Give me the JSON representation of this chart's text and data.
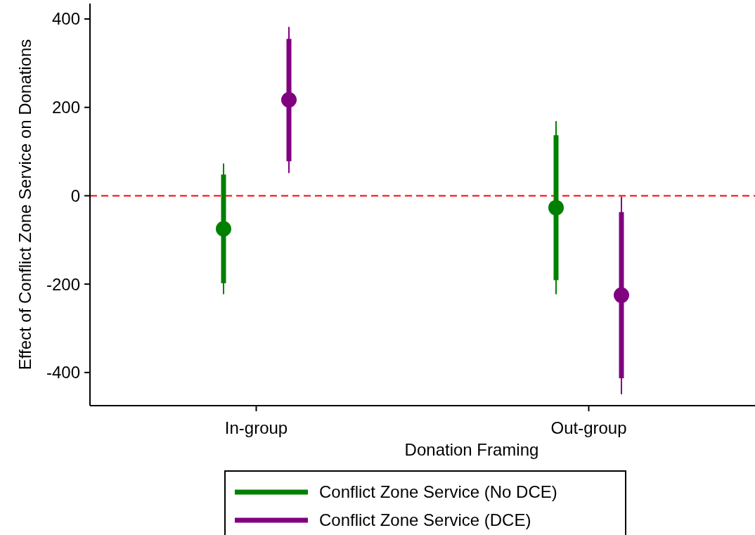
{
  "chart_data": {
    "type": "scatter",
    "xlabel": "Donation Framing",
    "ylabel": "Effect of Conflict Zone Service on Donations",
    "categories": [
      "In-group",
      "Out-group"
    ],
    "ylim": [
      -475,
      435
    ],
    "yticks": [
      -400,
      -200,
      0,
      200,
      400
    ],
    "grid": false,
    "legend": "bottom",
    "marker": "circle",
    "series": [
      {
        "type": "bar",
        "name": "Conflict Zone Service (No DCE)",
        "color": "#008000",
        "base": [
          -198,
          -191
        ],
        "values": [
          246,
          328
        ]
      },
      {
        "type": "bar",
        "name": "Conflict Zone Service (DCE)",
        "color": "#800080",
        "base": [
          78,
          -413
        ],
        "values": [
          277,
          376
        ]
      },
      {
        "color": "#008000",
        "x": [
          "In-group",
          "Out-group"
        ],
        "values": [
          -75,
          -27
        ],
        "errors": [
          [
            -223,
            73
          ],
          [
            -223,
            169
          ]
        ]
      },
      {
        "color": "#800080",
        "x": [
          "In-group",
          "Out-group"
        ],
        "values": [
          217,
          -225
        ],
        "errors": [
          [
            51,
            382
          ],
          [
            -449,
            -2
          ]
        ]
      }
    ],
    "ref_lines": [
      {
        "axis": "y",
        "value": 0,
        "color": "#ff0000",
        "line_style": "dashed"
      }
    ]
  }
}
